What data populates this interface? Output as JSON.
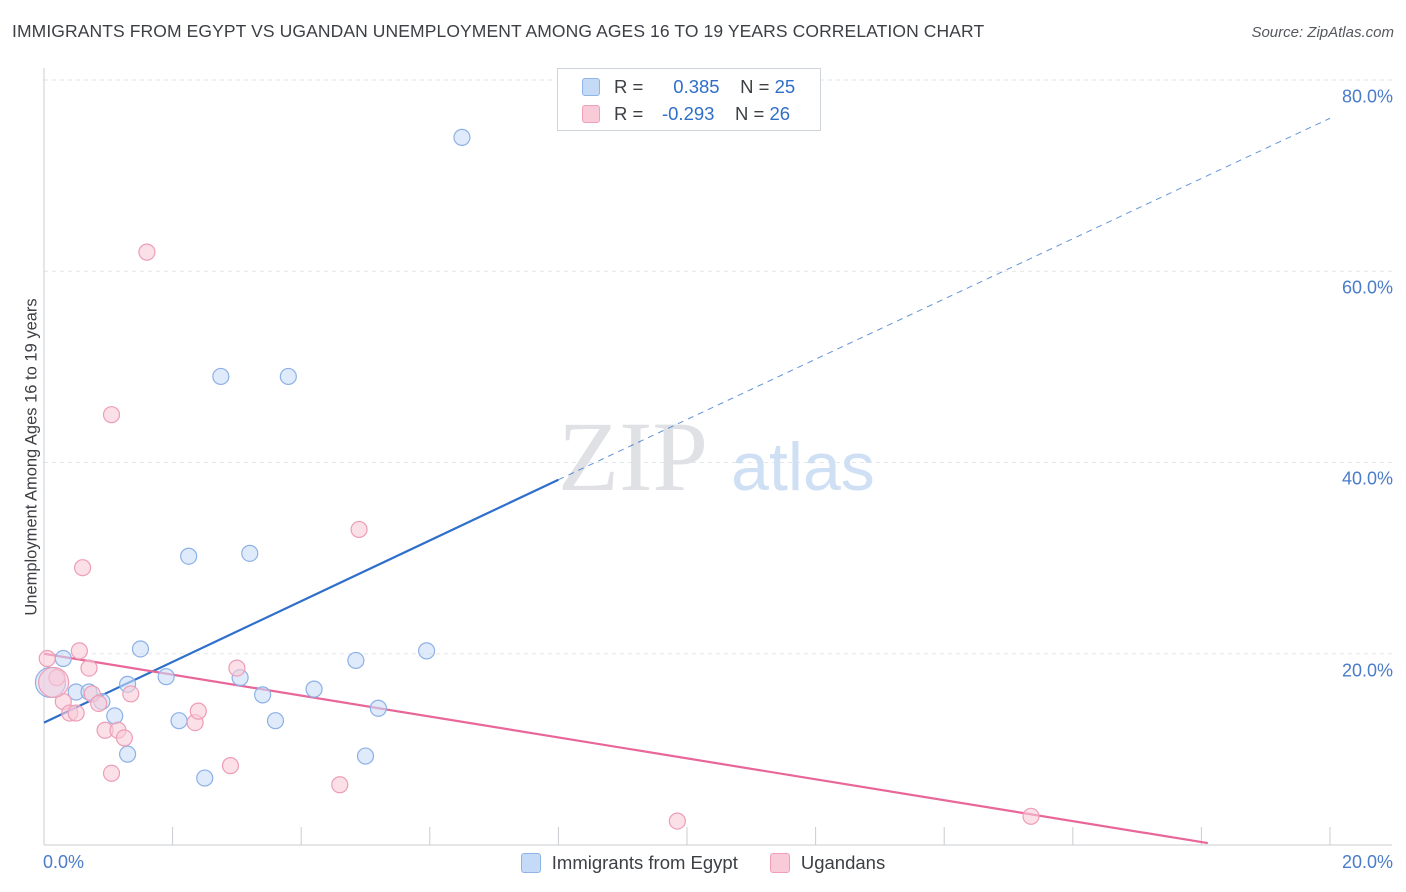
{
  "title": "IMMIGRANTS FROM EGYPT VS UGANDAN UNEMPLOYMENT AMONG AGES 16 TO 19 YEARS CORRELATION CHART",
  "source": "Source: ZipAtlas.com",
  "watermark": {
    "zip": "ZIP",
    "atlas": "atlas"
  },
  "legend": {
    "r_label": "R =",
    "n_label": "N =",
    "rows": [
      {
        "r": "0.385",
        "n": "25"
      },
      {
        "r": "-0.293",
        "n": "26"
      }
    ]
  },
  "chart_data": {
    "type": "scatter",
    "xlabel": "",
    "ylabel": "Unemployment Among Ages 16 to 19 years",
    "xlim": [
      0,
      20
    ],
    "ylim": [
      0,
      80
    ],
    "x_tick_labels": [
      "0.0%",
      "20.0%"
    ],
    "y_ticks": [
      20,
      40,
      60,
      80
    ],
    "y_tick_labels": [
      "20.0%",
      "40.0%",
      "60.0%",
      "80.0%"
    ],
    "grid": true,
    "legend_position": "top-center",
    "series": [
      {
        "name": "Immigrants from Egypt",
        "color": "#2f6fcc",
        "fill": "#c9dcf7",
        "stroke": "#8db1e6",
        "points": [
          [
            0.1,
            17.0
          ],
          [
            0.3,
            19.5
          ],
          [
            0.5,
            16.0
          ],
          [
            0.7,
            16.0
          ],
          [
            0.9,
            15.0
          ],
          [
            1.1,
            13.5
          ],
          [
            1.3,
            9.5
          ],
          [
            1.3,
            16.8
          ],
          [
            1.5,
            20.5
          ],
          [
            1.9,
            17.6
          ],
          [
            2.1,
            13.0
          ],
          [
            2.25,
            30.2
          ],
          [
            2.5,
            7.0
          ],
          [
            2.75,
            49.0
          ],
          [
            3.05,
            17.5
          ],
          [
            3.2,
            30.5
          ],
          [
            3.4,
            15.7
          ],
          [
            3.6,
            13.0
          ],
          [
            3.8,
            49.0
          ],
          [
            4.2,
            16.3
          ],
          [
            4.85,
            19.3
          ],
          [
            5.0,
            9.3
          ],
          [
            5.2,
            14.3
          ],
          [
            5.95,
            20.3
          ],
          [
            6.5,
            74.0
          ]
        ],
        "trend": {
          "x0": 0,
          "y0": 12.8,
          "x1": 8,
          "y1": 38.2,
          "extends_dashed_to": [
            20,
            76.0
          ]
        }
      },
      {
        "name": "Ugandans",
        "color": "#e8669a",
        "fill": "#f9cbd9",
        "stroke": "#ee9db7",
        "points": [
          [
            0.05,
            19.5
          ],
          [
            0.2,
            17.5
          ],
          [
            0.3,
            15.0
          ],
          [
            0.4,
            13.8
          ],
          [
            0.5,
            13.8
          ],
          [
            0.55,
            20.3
          ],
          [
            0.6,
            29.0
          ],
          [
            0.7,
            18.5
          ],
          [
            0.75,
            15.8
          ],
          [
            0.85,
            14.8
          ],
          [
            0.95,
            12.0
          ],
          [
            1.05,
            7.5
          ],
          [
            1.05,
            45.0
          ],
          [
            1.15,
            12.0
          ],
          [
            1.25,
            11.2
          ],
          [
            1.35,
            15.8
          ],
          [
            1.6,
            62.0
          ],
          [
            2.35,
            12.8
          ],
          [
            2.4,
            14.0
          ],
          [
            2.9,
            8.3
          ],
          [
            3.0,
            18.5
          ],
          [
            4.6,
            6.3
          ],
          [
            4.9,
            33.0
          ],
          [
            9.85,
            2.5
          ],
          [
            15.35,
            3.0
          ],
          [
            0.15,
            17.0
          ]
        ],
        "trend": {
          "x0": 0,
          "y0": 20.0,
          "x1": 18.1,
          "y1": 0.2
        }
      }
    ]
  }
}
